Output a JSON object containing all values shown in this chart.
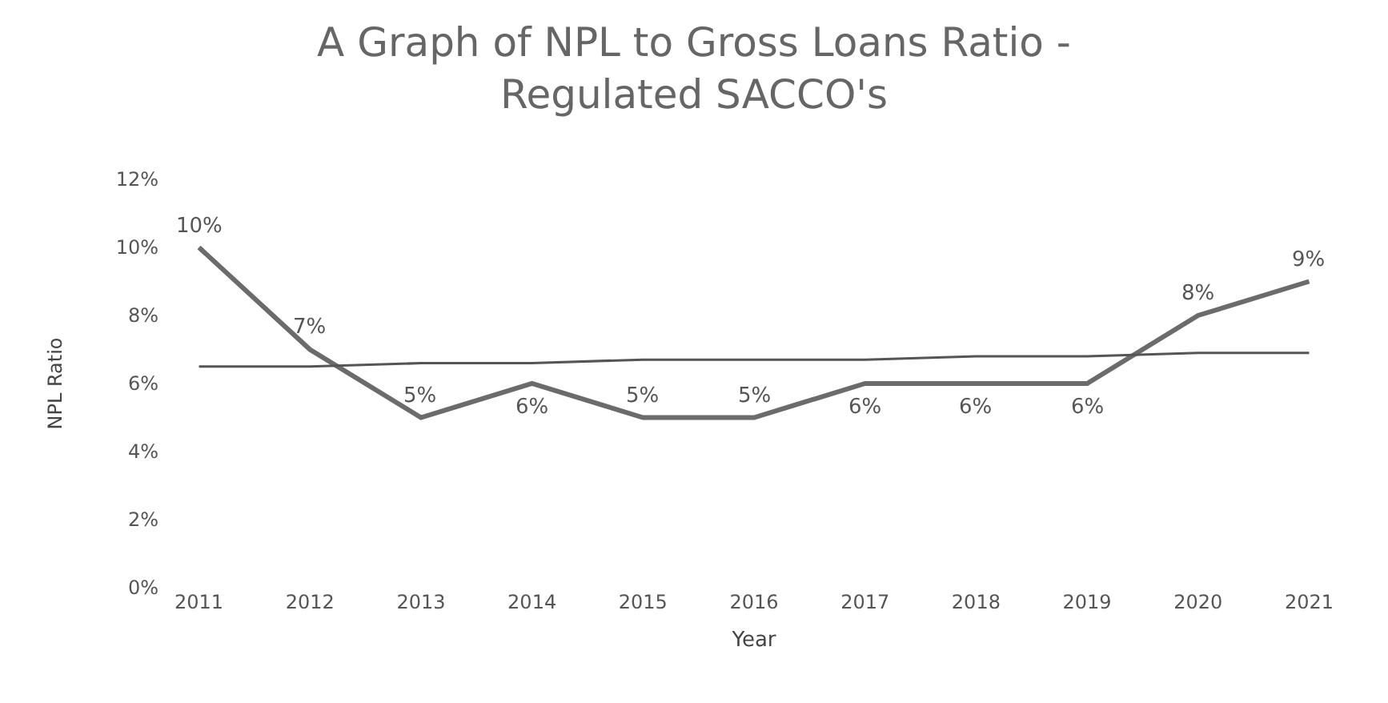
{
  "chart_data": {
    "type": "line",
    "title": "A Graph of NPL to Gross Loans Ratio -\nRegulated SACCO's",
    "xlabel": "Year",
    "ylabel": "NPL Ratio",
    "categories": [
      "2011",
      "2012",
      "2013",
      "2014",
      "2015",
      "2016",
      "2017",
      "2018",
      "2019",
      "2020",
      "2021"
    ],
    "series": [
      {
        "color": "#6b6b6b",
        "values": [
          10,
          7,
          5,
          6,
          5,
          5,
          6,
          6,
          6,
          8,
          9
        ],
        "value_labels": [
          "10%",
          "7%",
          "5%",
          "6%",
          "5%",
          "5%",
          "6%",
          "6%",
          "6%",
          "8%",
          "9%"
        ]
      },
      {
        "type": "line",
        "color": "#555555",
        "values": [
          6.5,
          6.5,
          6.6,
          6.6,
          6.7,
          6.7,
          6.7,
          6.8,
          6.8,
          6.9,
          6.9
        ]
      }
    ],
    "ylim": [
      0,
      12
    ],
    "yticks": [
      {
        "value": 0,
        "label": "0%"
      },
      {
        "value": 2,
        "label": "2%"
      },
      {
        "value": 4,
        "label": "4%"
      },
      {
        "value": 6,
        "label": "6%"
      },
      {
        "value": 8,
        "label": "8%"
      },
      {
        "value": 10,
        "label": "10%"
      },
      {
        "value": 12,
        "label": "12%"
      }
    ],
    "grid": false,
    "marker": "none",
    "line_style": "solid"
  }
}
